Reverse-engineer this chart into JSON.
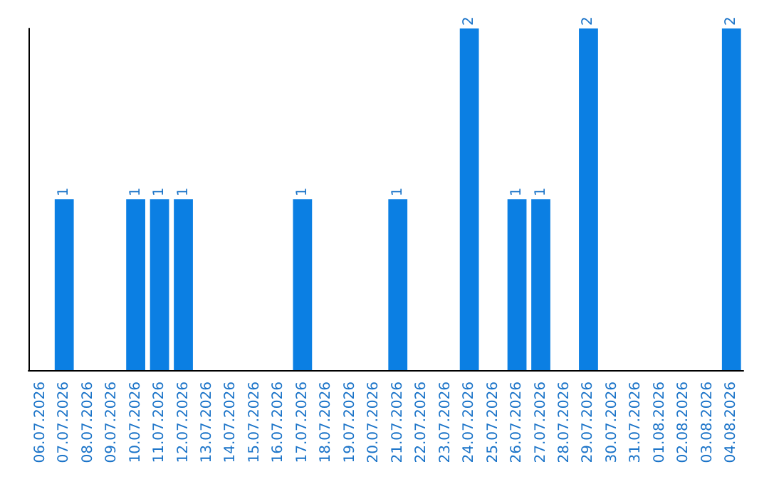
{
  "chart_data": {
    "type": "bar",
    "categories": [
      "06.07.2026",
      "07.07.2026",
      "08.07.2026",
      "09.07.2026",
      "10.07.2026",
      "11.07.2026",
      "12.07.2026",
      "13.07.2026",
      "14.07.2026",
      "15.07.2026",
      "16.07.2026",
      "17.07.2026",
      "18.07.2026",
      "19.07.2026",
      "20.07.2026",
      "21.07.2026",
      "22.07.2026",
      "23.07.2026",
      "24.07.2026",
      "25.07.2026",
      "26.07.2026",
      "27.07.2026",
      "28.07.2026",
      "29.07.2026",
      "30.07.2026",
      "31.07.2026",
      "01.08.2026",
      "02.08.2026",
      "03.08.2026",
      "04.08.2026"
    ],
    "values": [
      null,
      1,
      null,
      null,
      1,
      1,
      1,
      null,
      null,
      null,
      null,
      1,
      null,
      null,
      null,
      1,
      null,
      null,
      2,
      null,
      1,
      1,
      null,
      2,
      null,
      null,
      null,
      null,
      null,
      2
    ],
    "color": "#0b7fe3",
    "data_labels": true,
    "tick_labels": "x",
    "grid": false
  }
}
